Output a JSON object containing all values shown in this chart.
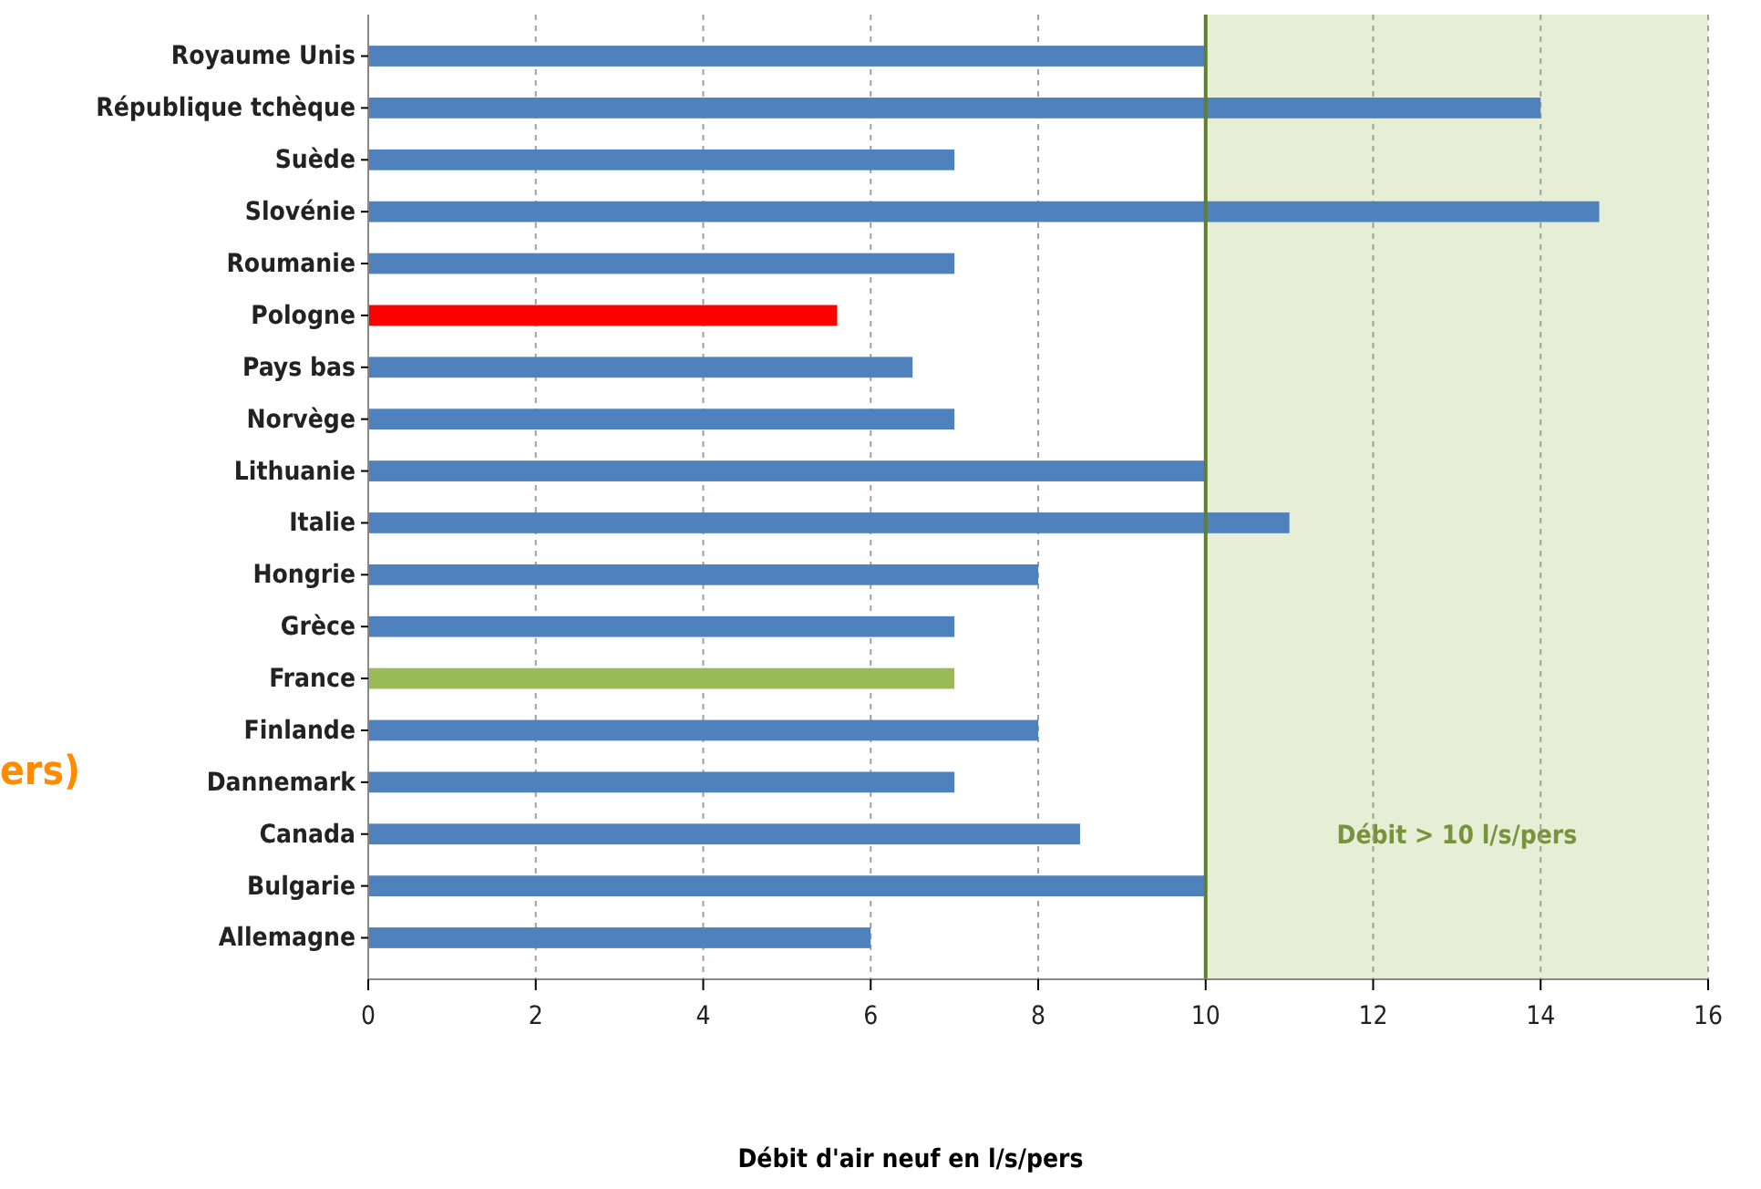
{
  "chart_data": {
    "type": "bar",
    "orientation": "horizontal",
    "xlabel": "Débit d'air neuf en l/s/pers",
    "categories": [
      "Royaume Unis",
      "République tchèque",
      "Suède",
      "Slovénie",
      "Roumanie",
      "Pologne",
      "Pays bas",
      "Norvège",
      "Lithuanie",
      "Italie",
      "Hongrie",
      "Grèce",
      "France",
      "Finlande",
      "Dannemark",
      "Canada",
      "Bulgarie",
      "Allemagne"
    ],
    "values": [
      10,
      14,
      7,
      14.7,
      7,
      5.6,
      6.5,
      7,
      10,
      11,
      8,
      7,
      7,
      8,
      7,
      8.5,
      10,
      6
    ],
    "colors": [
      "#4f81bd",
      "#4f81bd",
      "#4f81bd",
      "#4f81bd",
      "#4f81bd",
      "#ff0000",
      "#4f81bd",
      "#4f81bd",
      "#4f81bd",
      "#4f81bd",
      "#4f81bd",
      "#4f81bd",
      "#9bbb59",
      "#4f81bd",
      "#4f81bd",
      "#4f81bd",
      "#4f81bd",
      "#4f81bd"
    ],
    "xlim": [
      0,
      16
    ],
    "xticks": [
      0,
      2,
      4,
      6,
      8,
      10,
      12,
      14,
      16
    ],
    "grid": "x",
    "ref_lines": [
      {
        "axis": "x",
        "value": 10,
        "color": "#5f7f2f"
      }
    ],
    "bands": [
      {
        "axis": "x",
        "from": 10,
        "to": 16,
        "label": "Débit  >  10 l/s/pers",
        "color": "#e6eed6"
      }
    ],
    "annotations": [
      "ers)"
    ]
  }
}
